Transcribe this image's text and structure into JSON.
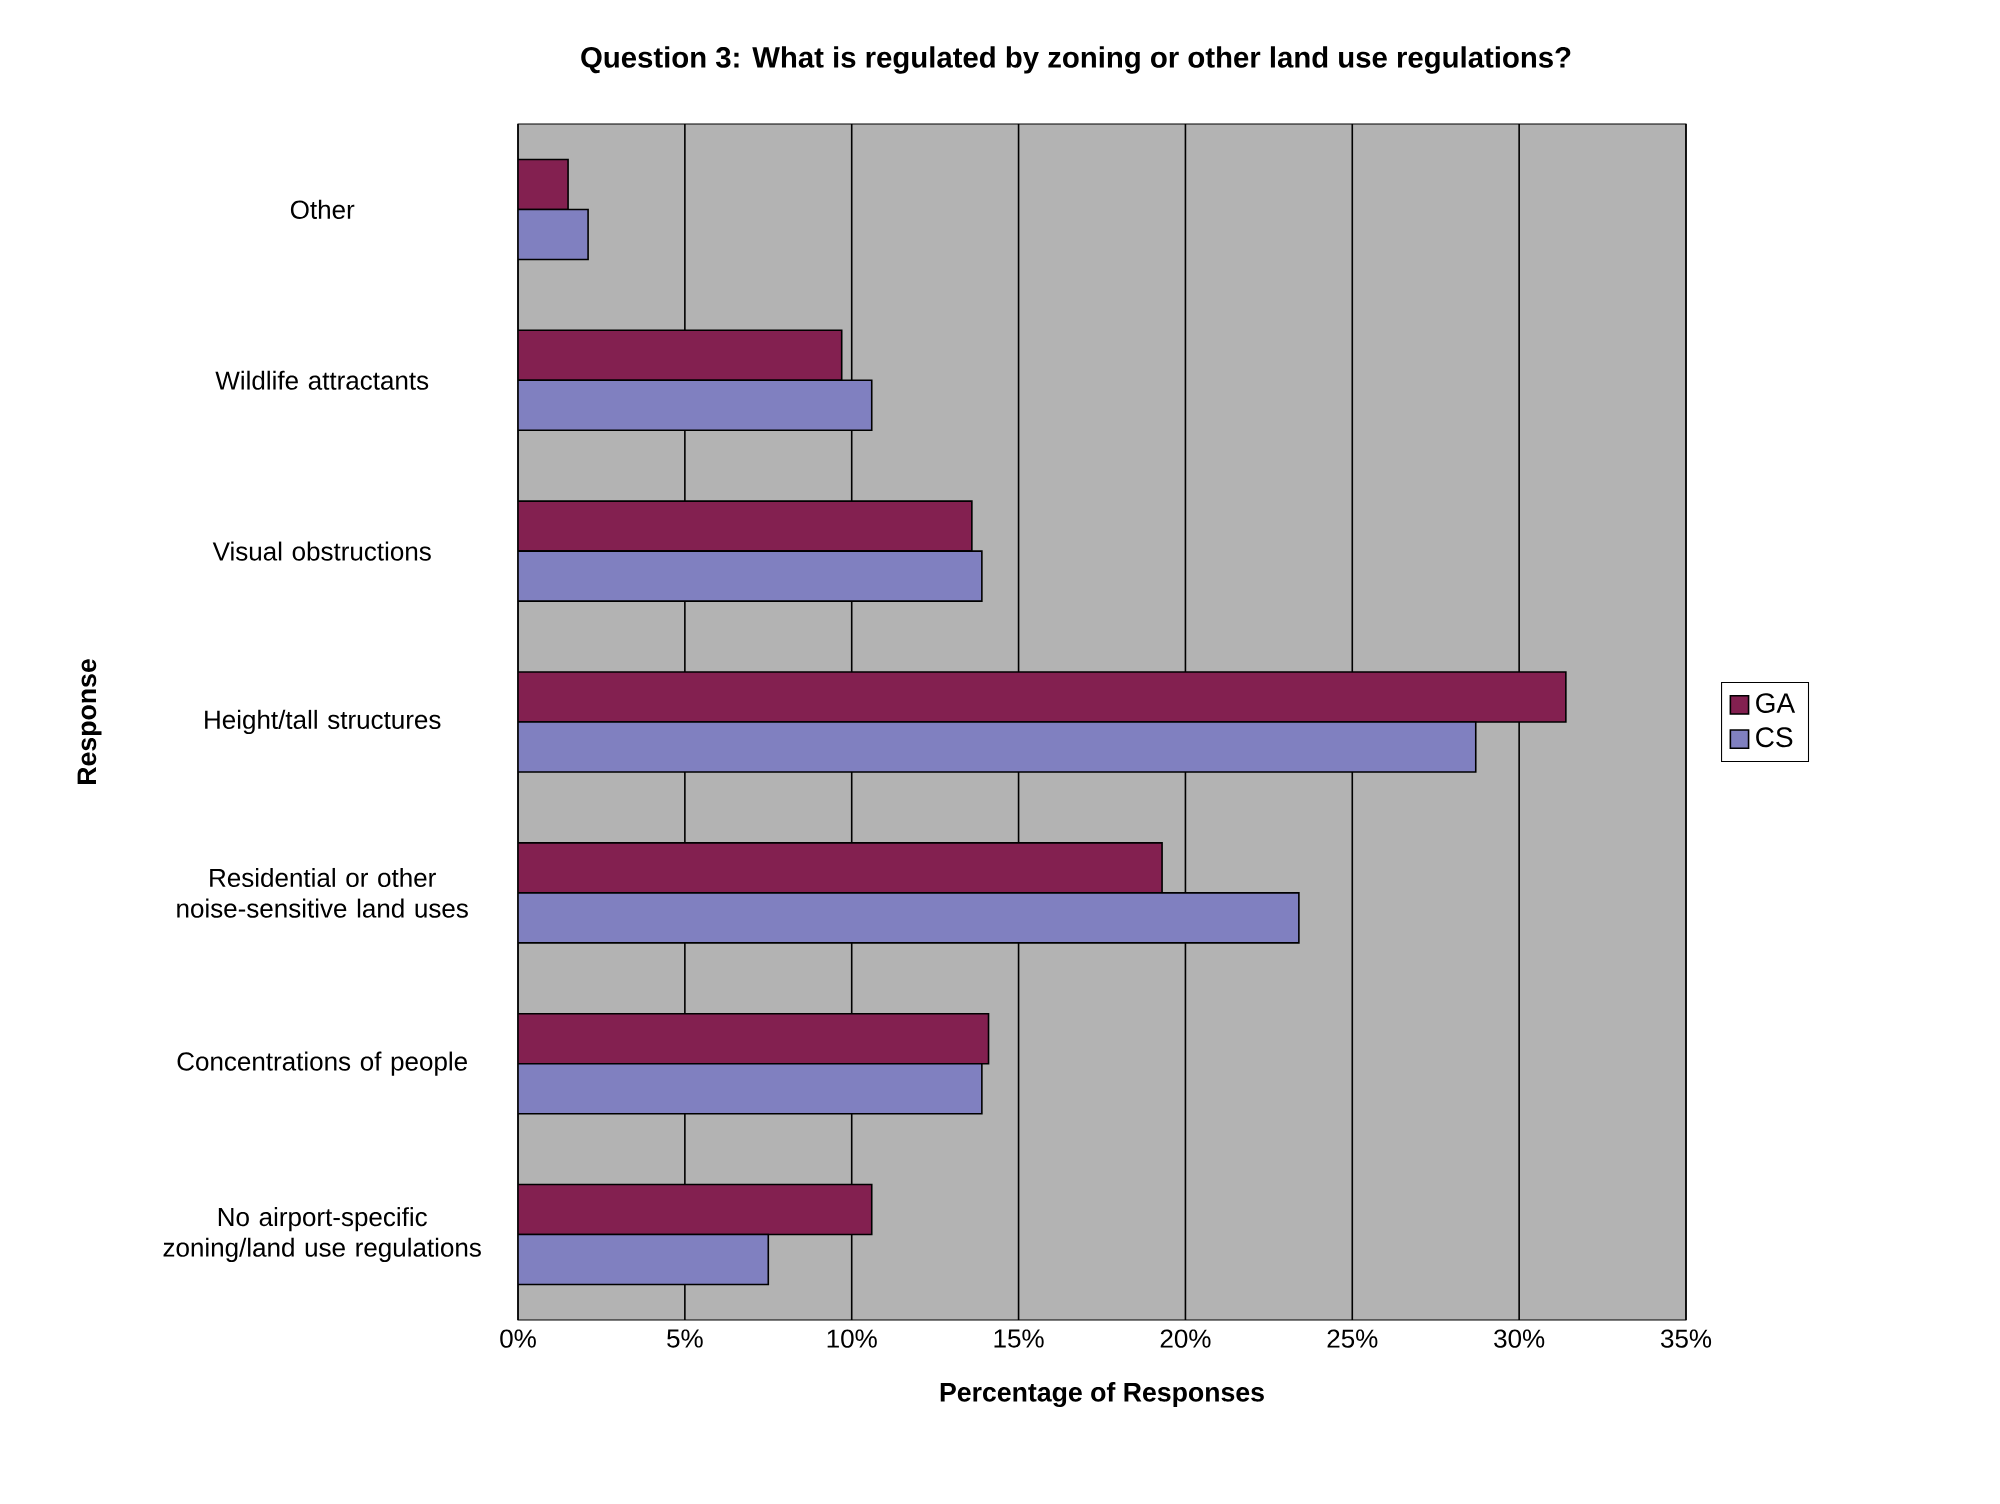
{
  "chart_data": {
    "type": "bar",
    "orientation": "horizontal",
    "title": "Question 3: What is regulated by zoning or other land use regulations?",
    "xlabel": "Percentage of Responses",
    "ylabel": "Response",
    "categories": [
      "Other",
      "Wildlife attractants",
      "Visual obstructions",
      "Height/tall structures",
      "Residential or other noise-sensitive land uses",
      "Concentrations of people",
      "No airport-specific zoning/land use regulations"
    ],
    "series": [
      {
        "name": "GA",
        "color": "#832050",
        "values": [
          1.5,
          9.7,
          13.6,
          31.4,
          19.3,
          14.1,
          10.6
        ]
      },
      {
        "name": "CS",
        "color": "#8080c0",
        "values": [
          2.1,
          10.6,
          13.9,
          28.7,
          23.4,
          13.9,
          7.5
        ]
      }
    ],
    "xlim": [
      0,
      35
    ],
    "xticks": [
      {
        "value": 0,
        "label": "0%"
      },
      {
        "value": 5,
        "label": "5%"
      },
      {
        "value": 10,
        "label": "10%"
      },
      {
        "value": 15,
        "label": "15%"
      },
      {
        "value": 20,
        "label": "20%"
      },
      {
        "value": 25,
        "label": "25%"
      },
      {
        "value": 30,
        "label": "30%"
      },
      {
        "value": 35,
        "label": "35%"
      }
    ],
    "grid": "x",
    "legend": "right"
  }
}
